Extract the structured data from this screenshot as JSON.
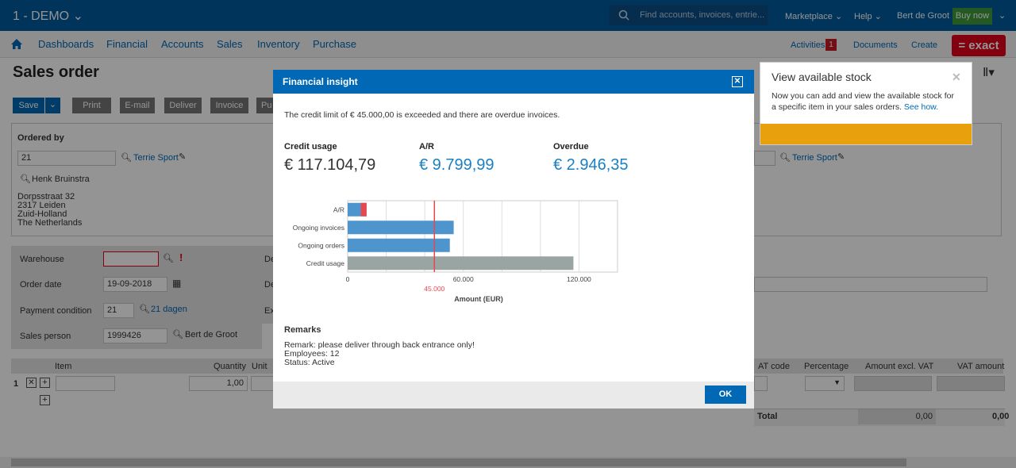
{
  "topbar": {
    "company": "1 - DEMO",
    "search_placeholder": "Find accounts, invoices, entrie...",
    "marketplace": "Marketplace",
    "help": "Help",
    "user": "Bert de Groot",
    "buy_now": "Buy now"
  },
  "nav": {
    "items": [
      "Dashboards",
      "Financial",
      "Accounts",
      "Sales",
      "Inventory",
      "Purchase"
    ],
    "activities": "Activities",
    "activities_count": "1",
    "documents": "Documents",
    "create": "Create",
    "logo": "= exact"
  },
  "page": {
    "title": "Sales order",
    "buttons": {
      "save": "Save",
      "print": "Print",
      "email": "E-mail",
      "deliver": "Deliver",
      "invoice": "Invoice",
      "partial": "Pu"
    }
  },
  "ordered_by": {
    "heading": "Ordered by",
    "account_code": "21",
    "account_name": "Terrie Sport",
    "contact": "Henk Bruinstra",
    "address": [
      "Dorpsstraat 32",
      "2317 Leiden",
      "Zuid-Holland",
      "The Netherlands"
    ],
    "right_account_name": "Terrie Sport"
  },
  "details": {
    "warehouse_label": "Warehouse",
    "warehouse_value": "",
    "order_date_label": "Order date",
    "order_date_value": "19-09-2018",
    "payment_label": "Payment condition",
    "payment_code": "21",
    "payment_name": "21 dagen",
    "sales_person_label": "Sales person",
    "sales_person_code": "1999426",
    "sales_person_name": "Bert de Groot",
    "mid_labels": [
      "De",
      "De",
      "Ex"
    ]
  },
  "lines": {
    "headers": {
      "item": "Item",
      "quantity": "Quantity",
      "unit": "Unit",
      "vat_code": "AT code",
      "percentage": "Percentage",
      "amount_excl": "Amount excl. VAT",
      "vat_amount": "VAT amount"
    },
    "row_number": "1",
    "quantity": "1,00",
    "total_label": "Total",
    "total_excl": "0,00",
    "total_vat": "0,00"
  },
  "tooltip": {
    "title": "View available stock",
    "body": "Now you can add and view the available stock for a specific item in your sales orders.",
    "link": "See how."
  },
  "dialog": {
    "title": "Financial insight",
    "message": "The credit limit of € 45.000,00 is exceeded and there are overdue invoices.",
    "metrics": [
      {
        "label": "Credit usage",
        "value": "€ 117.104,79",
        "color": "#333333"
      },
      {
        "label": "A/R",
        "value": "€ 9.799,99",
        "color": "#1a80c4"
      },
      {
        "label": "Overdue",
        "value": "€ 2.946,35",
        "color": "#1a80c4"
      }
    ],
    "remarks_heading": "Remarks",
    "remarks": [
      "Remark: please deliver through back entrance only!",
      "Employees: 12",
      "Status: Active"
    ],
    "ok": "OK"
  },
  "chart_data": {
    "type": "bar",
    "orientation": "horizontal",
    "categories": [
      "A/R",
      "Ongoing invoices",
      "Ongoing orders",
      "Credit usage"
    ],
    "values": [
      9799.99,
      55000,
      53000,
      117104.79
    ],
    "overdue_segment": {
      "category": "A/R",
      "value": 2946.35,
      "color": "#e8474c"
    },
    "colors": [
      "#4e94cd",
      "#4e94cd",
      "#4e94cd",
      "#9aa5a3"
    ],
    "xlim": [
      0,
      140000
    ],
    "xticks": [
      "0",
      "60.000",
      "120.000"
    ],
    "xtick_values": [
      0,
      60000,
      120000
    ],
    "credit_limit": {
      "value": 45000,
      "label": "45.000",
      "color": "#e8474c"
    },
    "xlabel": "Amount (EUR)",
    "grid": true
  }
}
